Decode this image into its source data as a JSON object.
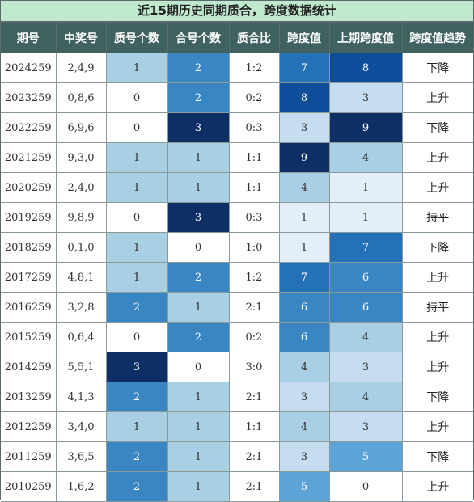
{
  "title": "近15期历史同期质合，跨度数据统计",
  "headers": [
    "期号",
    "中奖号",
    "质号个数",
    "合号个数",
    "质合比",
    "跨度值",
    "上期跨度值",
    "跨度值趋势"
  ],
  "rows": [
    {
      "period": "2024259",
      "numbers": "2,4,9",
      "prime": "1",
      "composite": "2",
      "ratio": "1:2",
      "span": "7",
      "prev_span": "8",
      "trend": "下降"
    },
    {
      "period": "2023259",
      "numbers": "0,8,6",
      "prime": "0",
      "composite": "2",
      "ratio": "0:2",
      "span": "8",
      "prev_span": "3",
      "trend": "上升"
    },
    {
      "period": "2022259",
      "numbers": "6,9,6",
      "prime": "0",
      "composite": "3",
      "ratio": "0:3",
      "span": "3",
      "prev_span": "9",
      "trend": "下降"
    },
    {
      "period": "2021259",
      "numbers": "9,3,0",
      "prime": "1",
      "composite": "1",
      "ratio": "1:1",
      "span": "9",
      "prev_span": "4",
      "trend": "上升"
    },
    {
      "period": "2020259",
      "numbers": "2,4,0",
      "prime": "1",
      "composite": "1",
      "ratio": "1:1",
      "span": "4",
      "prev_span": "1",
      "trend": "上升"
    },
    {
      "period": "2019259",
      "numbers": "9,8,9",
      "prime": "0",
      "composite": "3",
      "ratio": "0:3",
      "span": "1",
      "prev_span": "1",
      "trend": "持平"
    },
    {
      "period": "2018259",
      "numbers": "0,1,0",
      "prime": "1",
      "composite": "0",
      "ratio": "1:0",
      "span": "1",
      "prev_span": "7",
      "trend": "下降"
    },
    {
      "period": "2017259",
      "numbers": "4,8,1",
      "prime": "1",
      "composite": "2",
      "ratio": "1:2",
      "span": "7",
      "prev_span": "6",
      "trend": "上升"
    },
    {
      "period": "2016259",
      "numbers": "3,2,8",
      "prime": "2",
      "composite": "1",
      "ratio": "2:1",
      "span": "6",
      "prev_span": "6",
      "trend": "持平"
    },
    {
      "period": "2015259",
      "numbers": "0,6,4",
      "prime": "0",
      "composite": "2",
      "ratio": "0:2",
      "span": "6",
      "prev_span": "4",
      "trend": "上升"
    },
    {
      "period": "2014259",
      "numbers": "5,5,1",
      "prime": "3",
      "composite": "0",
      "ratio": "3:0",
      "span": "4",
      "prev_span": "3",
      "trend": "上升"
    },
    {
      "period": "2013259",
      "numbers": "4,1,3",
      "prime": "2",
      "composite": "1",
      "ratio": "2:1",
      "span": "3",
      "prev_span": "4",
      "trend": "下降"
    },
    {
      "period": "2012259",
      "numbers": "3,4,0",
      "prime": "1",
      "composite": "1",
      "ratio": "1:1",
      "span": "4",
      "prev_span": "3",
      "trend": "上升"
    },
    {
      "period": "2011259",
      "numbers": "3,6,5",
      "prime": "2",
      "composite": "1",
      "ratio": "2:1",
      "span": "3",
      "prev_span": "5",
      "trend": "下降"
    },
    {
      "period": "2010259",
      "numbers": "1,6,2",
      "prime": "2",
      "composite": "1",
      "ratio": "2:1",
      "span": "5",
      "prev_span": "0",
      "trend": "上升"
    }
  ],
  "colors": {
    "count_scale": {
      "0": "#ffffff",
      "1": "#a9cfe5",
      "2": "#3a86c3",
      "3": "#0d2f66"
    },
    "span_scale": {
      "0": "#ffffff",
      "1": "#e3eff8",
      "3": "#c6dcf0",
      "4": "#a9cfe5",
      "5": "#5da4d6",
      "6": "#3a86c3",
      "7": "#2471b8",
      "8": "#0e4e9a",
      "9": "#0d2f66"
    },
    "header_bg": "#3f6160",
    "title_bg": "#bfe8cf"
  }
}
